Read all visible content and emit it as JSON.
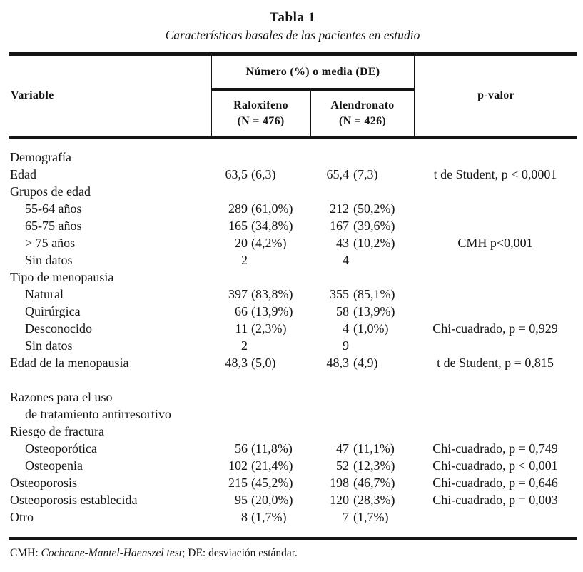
{
  "colors": {
    "ink": "#151515",
    "paper": "#ffffff"
  },
  "table": {
    "title": "Tabla 1",
    "subtitle": "Características basales de las pacientes en estudio",
    "header": {
      "variable": "Variable",
      "group": "Número (%) o media (DE)",
      "raloxifeno_line1": "Raloxifeno",
      "raloxifeno_line2": "(N = 476)",
      "alendronato_line1": "Alendronato",
      "alendronato_line2": "(N = 426)",
      "pvalue": "p-valor"
    },
    "rows": [
      {
        "label": "Demografía",
        "indent": 0
      },
      {
        "label": "Edad",
        "indent": 0,
        "ral": "63,5",
        "ral_pct": "(6,3)",
        "ale": "65,4",
        "ale_pct": "(7,3)",
        "p": "t de Student, p < 0,0001"
      },
      {
        "label": "Grupos de edad",
        "indent": 0
      },
      {
        "label": "55-64 años",
        "indent": 1,
        "ral": "289",
        "ral_pct": "(61,0%)",
        "ale": "212",
        "ale_pct": "(50,2%)"
      },
      {
        "label": "65-75 años",
        "indent": 1,
        "ral": "165",
        "ral_pct": "(34,8%)",
        "ale": "167",
        "ale_pct": "(39,6%)"
      },
      {
        "label": "> 75 años",
        "indent": 1,
        "ral": "20",
        "ral_pct": "(4,2%)",
        "ale": "43",
        "ale_pct": "(10,2%)",
        "p": "CMH p<0,001"
      },
      {
        "label": "Sin datos",
        "indent": 1,
        "ral": "2",
        "ale": "4"
      },
      {
        "label": "Tipo de menopausia",
        "indent": 0
      },
      {
        "label": "Natural",
        "indent": 1,
        "ral": "397",
        "ral_pct": "(83,8%)",
        "ale": "355",
        "ale_pct": "(85,1%)"
      },
      {
        "label": "Quirúrgica",
        "indent": 1,
        "ral": "66",
        "ral_pct": "(13,9%)",
        "ale": "58",
        "ale_pct": "(13,9%)"
      },
      {
        "label": "Desconocido",
        "indent": 1,
        "ral": "11",
        "ral_pct": "(2,3%)",
        "ale": "4",
        "ale_pct": "(1,0%)",
        "p": "Chi-cuadrado, p = 0,929"
      },
      {
        "label": "Sin datos",
        "indent": 1,
        "ral": "2",
        "ale": "9"
      },
      {
        "label": "Edad de la menopausia",
        "indent": 0,
        "ral": "48,3",
        "ral_pct": "(5,0)",
        "ale": "48,3",
        "ale_pct": "(4,9)",
        "p": "t de Student, p = 0,815"
      },
      {
        "spacer": true
      },
      {
        "label": "Razones para el uso",
        "indent": 0
      },
      {
        "label": "de tratamiento antirresortivo",
        "indent": 1
      },
      {
        "label": "Riesgo de fractura",
        "indent": 0
      },
      {
        "label": "Osteoporótica",
        "indent": 1,
        "ral": "56",
        "ral_pct": "(11,8%)",
        "ale": "47",
        "ale_pct": "(11,1%)",
        "p": "Chi-cuadrado, p = 0,749"
      },
      {
        "label": "Osteopenia",
        "indent": 1,
        "ral": "102",
        "ral_pct": "(21,4%)",
        "ale": "52",
        "ale_pct": "(12,3%)",
        "p": "Chi-cuadrado, p < 0,001"
      },
      {
        "label": "Osteoporosis",
        "indent": 0,
        "ral": "215",
        "ral_pct": "(45,2%)",
        "ale": "198",
        "ale_pct": "(46,7%)",
        "p": "Chi-cuadrado, p = 0,646"
      },
      {
        "label": "Osteoporosis establecida",
        "indent": 0,
        "ral": "95",
        "ral_pct": "(20,0%)",
        "ale": "120",
        "ale_pct": "(28,3%)",
        "p": "Chi-cuadrado, p = 0,003"
      },
      {
        "label": "Otro",
        "indent": 0,
        "ral": "8",
        "ral_pct": "(1,7%)",
        "ale": "7",
        "ale_pct": "(1,7%)"
      }
    ],
    "footnote": {
      "prefix": "CMH: ",
      "italic": "Cochrane-Mantel-Haenszel test",
      "suffix": "; DE: desviación estándar."
    }
  }
}
